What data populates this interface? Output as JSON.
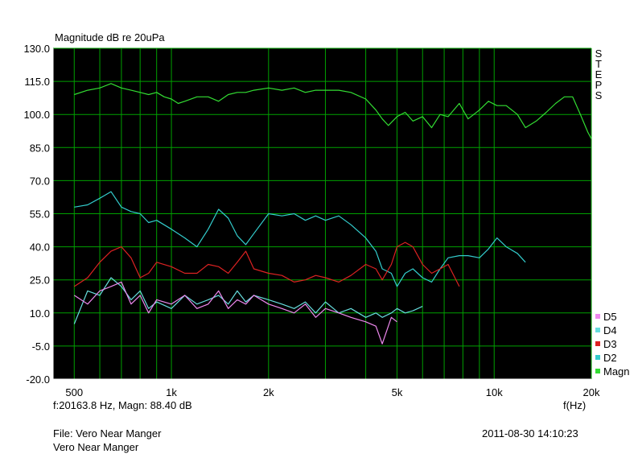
{
  "header": {
    "y_label": "Magnitude dB re 20uPa"
  },
  "side_label": {
    "letters": [
      "S",
      "T",
      "E",
      "P",
      "S"
    ]
  },
  "cursor_readout": "f:20163.8 Hz, Magn: 88.40 dB",
  "x_unit": "f(Hz)",
  "footer": {
    "file_line": "File: Vero Near Manger",
    "name_line": "Vero Near Manger",
    "timestamp": "2011-08-30 14:10:23"
  },
  "colors": {
    "background": "#000000",
    "grid": "#00a000",
    "axes": "#ffffff"
  },
  "chart_data": {
    "type": "line",
    "xscale": "log",
    "xlim": [
      430,
      20000
    ],
    "ylim": [
      -20,
      130
    ],
    "xlabel": "f(Hz)",
    "ylabel": "Magnitude dB re 20uPa",
    "x_tick_labels": [
      {
        "value": 500,
        "label": "500"
      },
      {
        "value": 1000,
        "label": "1k"
      },
      {
        "value": 2000,
        "label": "2k"
      },
      {
        "value": 5000,
        "label": "5k"
      },
      {
        "value": 10000,
        "label": "10k"
      },
      {
        "value": 20000,
        "label": "20k"
      }
    ],
    "y_ticks": [
      130,
      115,
      100,
      85,
      70,
      55,
      40,
      25,
      10,
      -5,
      -20
    ],
    "y_tick_labels": [
      "130.0",
      "115.0",
      "100.0",
      "85.0",
      "70.0",
      "55.0",
      "40.0",
      "25.0",
      "10.0",
      "-5.0",
      "-20.0"
    ],
    "legend_position": "bottom-right",
    "series": [
      {
        "name": "Magn",
        "color": "#33dd33",
        "points": [
          [
            500,
            109
          ],
          [
            550,
            111
          ],
          [
            600,
            112
          ],
          [
            650,
            114
          ],
          [
            700,
            112
          ],
          [
            750,
            111
          ],
          [
            800,
            110
          ],
          [
            850,
            109
          ],
          [
            900,
            110
          ],
          [
            950,
            108
          ],
          [
            1000,
            107
          ],
          [
            1050,
            105
          ],
          [
            1100,
            106
          ],
          [
            1200,
            108
          ],
          [
            1300,
            108
          ],
          [
            1400,
            106
          ],
          [
            1500,
            109
          ],
          [
            1600,
            110
          ],
          [
            1700,
            110
          ],
          [
            1800,
            111
          ],
          [
            2000,
            112
          ],
          [
            2200,
            111
          ],
          [
            2400,
            112
          ],
          [
            2600,
            110
          ],
          [
            2800,
            111
          ],
          [
            3000,
            111
          ],
          [
            3300,
            111
          ],
          [
            3600,
            110
          ],
          [
            4000,
            107
          ],
          [
            4300,
            102
          ],
          [
            4500,
            98
          ],
          [
            4700,
            95
          ],
          [
            5000,
            99
          ],
          [
            5300,
            101
          ],
          [
            5600,
            97
          ],
          [
            6000,
            99
          ],
          [
            6400,
            94
          ],
          [
            6800,
            100
          ],
          [
            7200,
            99
          ],
          [
            7800,
            105
          ],
          [
            8300,
            98
          ],
          [
            9000,
            102
          ],
          [
            9600,
            106
          ],
          [
            10200,
            104
          ],
          [
            10900,
            104
          ],
          [
            11800,
            100
          ],
          [
            12500,
            94
          ],
          [
            13500,
            97
          ],
          [
            14500,
            101
          ],
          [
            15500,
            105
          ],
          [
            16500,
            108
          ],
          [
            17500,
            108
          ],
          [
            18500,
            100
          ],
          [
            19500,
            92
          ],
          [
            20000,
            89
          ]
        ]
      },
      {
        "name": "D2",
        "color": "#33cccc",
        "points": [
          [
            500,
            58
          ],
          [
            550,
            59
          ],
          [
            600,
            62
          ],
          [
            650,
            65
          ],
          [
            700,
            58
          ],
          [
            750,
            56
          ],
          [
            800,
            55
          ],
          [
            850,
            51
          ],
          [
            900,
            52
          ],
          [
            1000,
            48
          ],
          [
            1100,
            44
          ],
          [
            1200,
            40
          ],
          [
            1300,
            48
          ],
          [
            1400,
            57
          ],
          [
            1500,
            53
          ],
          [
            1600,
            45
          ],
          [
            1700,
            41
          ],
          [
            1800,
            46
          ],
          [
            2000,
            55
          ],
          [
            2200,
            54
          ],
          [
            2400,
            55
          ],
          [
            2600,
            52
          ],
          [
            2800,
            54
          ],
          [
            3000,
            52
          ],
          [
            3300,
            54
          ],
          [
            3600,
            50
          ],
          [
            4000,
            44
          ],
          [
            4300,
            38
          ],
          [
            4500,
            30
          ],
          [
            4800,
            28
          ],
          [
            5000,
            22
          ],
          [
            5300,
            28
          ],
          [
            5600,
            30
          ],
          [
            6000,
            26
          ],
          [
            6400,
            24
          ],
          [
            6800,
            30
          ],
          [
            7200,
            35
          ],
          [
            7800,
            36
          ],
          [
            8300,
            36
          ],
          [
            9000,
            35
          ],
          [
            9600,
            39
          ],
          [
            10200,
            44
          ],
          [
            10900,
            40
          ],
          [
            11800,
            37
          ],
          [
            12500,
            33
          ]
        ]
      },
      {
        "name": "D3",
        "color": "#dd2222",
        "points": [
          [
            500,
            22
          ],
          [
            550,
            26
          ],
          [
            600,
            33
          ],
          [
            650,
            38
          ],
          [
            700,
            40
          ],
          [
            750,
            35
          ],
          [
            800,
            26
          ],
          [
            850,
            28
          ],
          [
            900,
            33
          ],
          [
            1000,
            31
          ],
          [
            1100,
            28
          ],
          [
            1200,
            28
          ],
          [
            1300,
            32
          ],
          [
            1400,
            31
          ],
          [
            1500,
            28
          ],
          [
            1600,
            33
          ],
          [
            1700,
            38
          ],
          [
            1800,
            30
          ],
          [
            2000,
            28
          ],
          [
            2200,
            27
          ],
          [
            2400,
            24
          ],
          [
            2600,
            25
          ],
          [
            2800,
            27
          ],
          [
            3000,
            26
          ],
          [
            3300,
            24
          ],
          [
            3600,
            27
          ],
          [
            4000,
            32
          ],
          [
            4300,
            30
          ],
          [
            4500,
            25
          ],
          [
            4800,
            32
          ],
          [
            5000,
            40
          ],
          [
            5300,
            42
          ],
          [
            5600,
            40
          ],
          [
            6000,
            32
          ],
          [
            6400,
            28
          ],
          [
            6800,
            30
          ],
          [
            7200,
            32
          ],
          [
            7800,
            22
          ]
        ]
      },
      {
        "name": "D4",
        "color": "#66dddd",
        "points": [
          [
            500,
            5
          ],
          [
            550,
            20
          ],
          [
            600,
            18
          ],
          [
            650,
            26
          ],
          [
            700,
            22
          ],
          [
            750,
            16
          ],
          [
            800,
            20
          ],
          [
            850,
            12
          ],
          [
            900,
            15
          ],
          [
            1000,
            12
          ],
          [
            1100,
            18
          ],
          [
            1200,
            14
          ],
          [
            1300,
            16
          ],
          [
            1400,
            18
          ],
          [
            1500,
            14
          ],
          [
            1600,
            20
          ],
          [
            1700,
            15
          ],
          [
            1800,
            18
          ],
          [
            2000,
            16
          ],
          [
            2200,
            14
          ],
          [
            2400,
            12
          ],
          [
            2600,
            15
          ],
          [
            2800,
            10
          ],
          [
            3000,
            15
          ],
          [
            3300,
            10
          ],
          [
            3600,
            12
          ],
          [
            4000,
            8
          ],
          [
            4300,
            10
          ],
          [
            4500,
            8
          ],
          [
            4800,
            10
          ],
          [
            5000,
            12
          ],
          [
            5300,
            10
          ],
          [
            5600,
            11
          ],
          [
            6000,
            13
          ]
        ]
      },
      {
        "name": "D5",
        "color": "#ee88ee",
        "points": [
          [
            500,
            18
          ],
          [
            550,
            14
          ],
          [
            600,
            20
          ],
          [
            650,
            22
          ],
          [
            700,
            24
          ],
          [
            750,
            14
          ],
          [
            800,
            18
          ],
          [
            850,
            10
          ],
          [
            900,
            16
          ],
          [
            1000,
            14
          ],
          [
            1100,
            18
          ],
          [
            1200,
            12
          ],
          [
            1300,
            14
          ],
          [
            1400,
            20
          ],
          [
            1500,
            12
          ],
          [
            1600,
            16
          ],
          [
            1700,
            14
          ],
          [
            1800,
            18
          ],
          [
            2000,
            14
          ],
          [
            2200,
            12
          ],
          [
            2400,
            10
          ],
          [
            2600,
            14
          ],
          [
            2800,
            8
          ],
          [
            3000,
            12
          ],
          [
            3300,
            10
          ],
          [
            3600,
            8
          ],
          [
            4000,
            6
          ],
          [
            4300,
            4
          ],
          [
            4500,
            -4
          ],
          [
            4800,
            8
          ],
          [
            5000,
            6
          ]
        ]
      }
    ],
    "legend_order": [
      "D5",
      "D4",
      "D3",
      "D2",
      "Magn"
    ]
  }
}
